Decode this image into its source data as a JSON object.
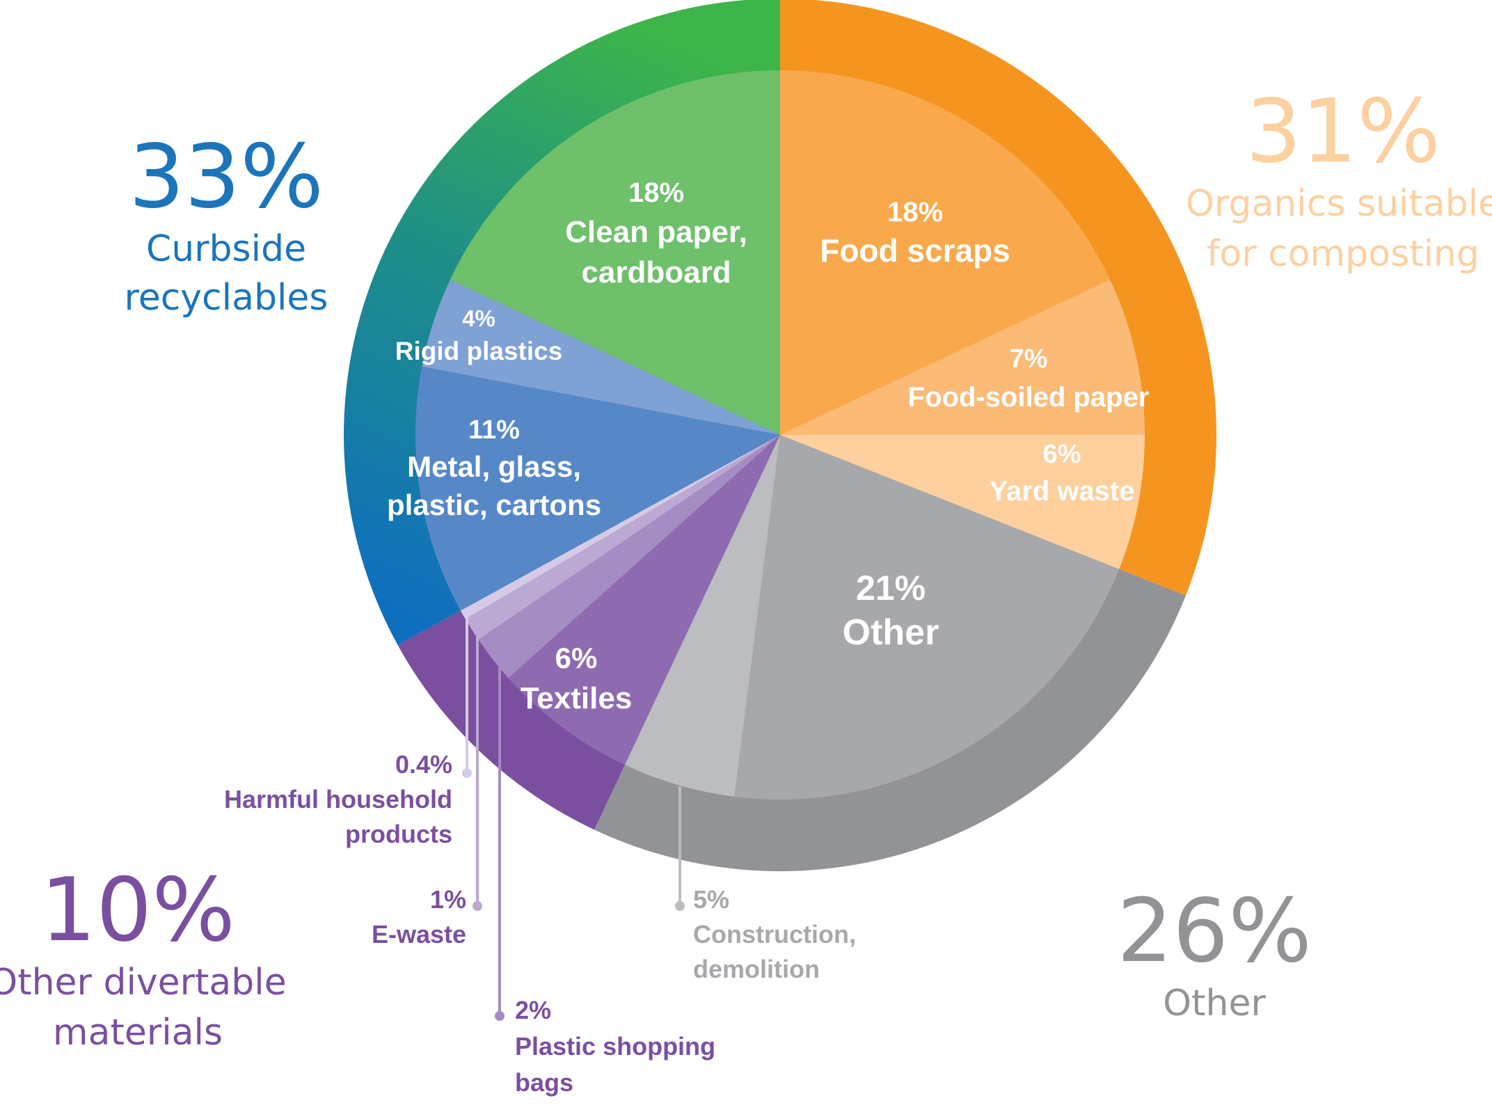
{
  "chart_data": {
    "type": "pie",
    "groups": [
      {
        "name": "Organics suitable for composting",
        "name_lines": [
          "Organics suitable",
          "for composting"
        ],
        "percent_label": "31%",
        "value": 31,
        "color": "#f5951f",
        "text_color": "#fdd0a0",
        "segments": [
          {
            "pct_label": "18%",
            "name_lines": [
              "Food scraps"
            ],
            "value": 18,
            "color": "#f9a94b"
          },
          {
            "pct_label": "7%",
            "name_lines": [
              "Food-soiled paper"
            ],
            "value": 7,
            "color": "#fbbb76"
          },
          {
            "pct_label": "6%",
            "name_lines": [
              "Yard waste"
            ],
            "value": 6,
            "color": "#fdd09e"
          }
        ]
      },
      {
        "name": "Other",
        "name_lines": [
          "Other"
        ],
        "percent_label": "26%",
        "value": 26,
        "color": "#929396",
        "text_color": "#929396",
        "segments": [
          {
            "pct_label": "21%",
            "name_lines": [
              "Other"
            ],
            "value": 21,
            "color": "#a7a8ab"
          },
          {
            "pct_label": "5%",
            "name_lines": [
              "Construction,",
              "demolition"
            ],
            "value": 5,
            "color": "#bcbdc0",
            "callout": true
          }
        ]
      },
      {
        "name": "Other divertable materials",
        "name_lines": [
          "Other divertable",
          "materials"
        ],
        "percent_label": "10%",
        "value": 10,
        "color": "#7a4fa0",
        "text_color": "#7a4fa0",
        "segments": [
          {
            "pct_label": "6%",
            "name_lines": [
              "Textiles"
            ],
            "value": 6,
            "color": "#8e6bb0"
          },
          {
            "pct_label": "2%",
            "name_lines": [
              "Plastic shopping",
              "bags"
            ],
            "value": 2,
            "color": "#a58cc3",
            "callout": true
          },
          {
            "pct_label": "1%",
            "name_lines": [
              "E-waste"
            ],
            "value": 1,
            "color": "#bba9d3",
            "callout": true
          },
          {
            "pct_label": "0.4%",
            "name_lines": [
              "Harmful household",
              "products"
            ],
            "value": 0.4,
            "color": "#d6cbe6",
            "callout": true
          }
        ]
      },
      {
        "name": "Curbside recyclables",
        "name_lines": [
          "Curbside",
          "recyclables"
        ],
        "percent_label": "33%",
        "value": 33,
        "color": "#1a7cc1",
        "text_color": "#1a75bb",
        "segments": [
          {
            "pct_label": "11%",
            "name_lines": [
              "Metal, glass,",
              "plastic, cartons"
            ],
            "value": 11,
            "color": "#5688c8"
          },
          {
            "pct_label": "4%",
            "name_lines": [
              "Rigid plastics"
            ],
            "value": 4,
            "color": "#7fa1d4"
          },
          {
            "pct_label": "18%",
            "name_lines": [
              "Clean paper,",
              "cardboard"
            ],
            "value": 18,
            "color": "#6ec06a"
          }
        ]
      }
    ]
  }
}
